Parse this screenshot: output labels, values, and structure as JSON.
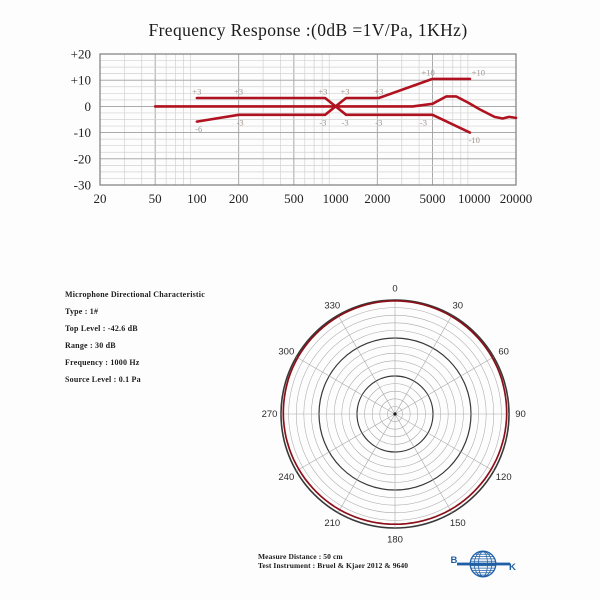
{
  "colors": {
    "curve_red": "#b0121f",
    "polar_red": "#8c1019",
    "grid_minor": "#d2d2d2",
    "grid_major": "#9f9f9f",
    "border": "#7d7d7d",
    "axis_text": "#222222",
    "annotation_text": "#a0968f",
    "polar_grid_minor": "#a9a9a9",
    "polar_grid_major": "#383838",
    "logo_blue": "#1f5fa6"
  },
  "chart_data": [
    {
      "id": "frequency_response",
      "type": "line",
      "title": "Frequency  Response :(0dB =1V/Pa, 1KHz)",
      "x_scale": "log",
      "xlim": [
        20,
        20000
      ],
      "ylim": [
        -30,
        20
      ],
      "x_ticks": [
        20,
        50,
        100,
        200,
        500,
        1000,
        2000,
        5000,
        10000,
        20000
      ],
      "y_ticks": [
        {
          "value": 20,
          "label": "+20"
        },
        {
          "value": 10,
          "label": "+10"
        },
        {
          "value": 0,
          "label": "0"
        },
        {
          "value": -10,
          "label": "-10"
        },
        {
          "value": -20,
          "label": "-20"
        },
        {
          "value": -30,
          "label": "-30"
        }
      ],
      "y_minor_step_db": 2.5,
      "grid": true,
      "series": [
        {
          "name": "response",
          "points": [
            [
              50,
              0
            ],
            [
              3600,
              0
            ],
            [
              5000,
              1
            ],
            [
              6300,
              3.8
            ],
            [
              7400,
              3.8
            ],
            [
              9000,
              1.5
            ],
            [
              11000,
              -1.2
            ],
            [
              14000,
              -4
            ],
            [
              16000,
              -4.6
            ],
            [
              17800,
              -4
            ],
            [
              20000,
              -4.4
            ]
          ]
        },
        {
          "name": "upper_tolerance",
          "points": [
            [
              100,
              3.2
            ],
            [
              840,
              3.2
            ],
            [
              1000,
              0
            ],
            [
              1190,
              3.2
            ],
            [
              2050,
              3.2
            ],
            [
              5000,
              10.5
            ],
            [
              9300,
              10.5
            ]
          ]
        },
        {
          "name": "lower_tolerance",
          "points": [
            [
              100,
              -5.8
            ],
            [
              200,
              -3.2
            ],
            [
              840,
              -3.2
            ],
            [
              1000,
              0
            ],
            [
              1190,
              -3.2
            ],
            [
              5000,
              -3.2
            ],
            [
              9300,
              -10
            ]
          ]
        }
      ],
      "annotations": [
        {
          "text": "+3",
          "freq": 100,
          "db": 3.2,
          "pos": "above"
        },
        {
          "text": "+3",
          "freq": 200,
          "db": 3.2,
          "pos": "above"
        },
        {
          "text": "+3",
          "freq": 810,
          "db": 3.2,
          "pos": "above"
        },
        {
          "text": "+3",
          "freq": 1170,
          "db": 3.2,
          "pos": "above"
        },
        {
          "text": "+3",
          "freq": 2050,
          "db": 3.2,
          "pos": "above"
        },
        {
          "text": "+10",
          "freq": 4650,
          "db": 10.5,
          "pos": "above"
        },
        {
          "text": "+10",
          "freq": 10700,
          "db": 10.5,
          "pos": "above"
        },
        {
          "text": "-6",
          "freq": 103,
          "db": -5.8,
          "pos": "below"
        },
        {
          "text": "-3",
          "freq": 205,
          "db": -3.2,
          "pos": "below"
        },
        {
          "text": "-3",
          "freq": 810,
          "db": -3.2,
          "pos": "below"
        },
        {
          "text": "-3",
          "freq": 1170,
          "db": -3.2,
          "pos": "below"
        },
        {
          "text": "-3",
          "freq": 2050,
          "db": -3.2,
          "pos": "below"
        },
        {
          "text": "-3",
          "freq": 4300,
          "db": -3.2,
          "pos": "below"
        },
        {
          "text": "-10",
          "freq": 10000,
          "db": -10,
          "pos": "below"
        }
      ]
    },
    {
      "id": "polar_pattern",
      "type": "polar",
      "angle_labels_deg": [
        0,
        30,
        60,
        90,
        120,
        150,
        180,
        210,
        240,
        270,
        300,
        330
      ],
      "rings": 15,
      "major_ring_every": 5,
      "spoke_step_deg": 30,
      "range_db": 30,
      "pattern_series": {
        "name": "1000 Hz omnidirectional",
        "angles_deg": [
          0,
          30,
          60,
          90,
          120,
          150,
          180,
          210,
          240,
          270,
          300,
          330
        ],
        "level_db": [
          0,
          -0.1,
          -0.2,
          -0.4,
          -0.6,
          -0.7,
          -0.8,
          -0.7,
          -0.6,
          -0.4,
          -0.2,
          -0.1
        ]
      }
    }
  ],
  "specs": {
    "lines": [
      "Microphone Directional Characteristic",
      "Type : 1#",
      "Top Level : -42.6 dB",
      "Range : 30 dB",
      "Frequency : 1000 Hz",
      "Source Level : 0.1 Pa"
    ]
  },
  "footer": {
    "line1": "Measure Distance : 50 cm",
    "line2": "Test Instrument : Bruel & Kjaer 2012 & 9640"
  },
  "logo": {
    "left": "B",
    "right": "K"
  }
}
